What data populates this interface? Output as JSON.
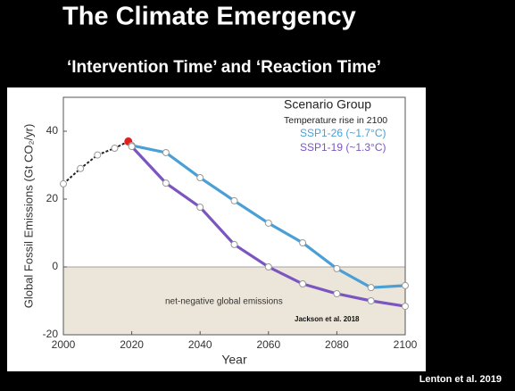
{
  "title": "The Climate Emergency",
  "subtitle": "‘Intervention Time’ and ‘Reaction Time’",
  "source": "Lenton et al. 2019",
  "chart_data": {
    "type": "line",
    "x_label": "Year",
    "y_label": "Global Fossil Emissions (Gt CO₂/yr)",
    "xlim": [
      2000,
      2100
    ],
    "xticks": [
      2000,
      2020,
      2040,
      2060,
      2080,
      2100
    ],
    "ylim": [
      -20,
      50
    ],
    "yticks": [
      -20,
      0,
      20,
      40
    ],
    "negative_shade_color": "#ece6da",
    "legend": "upper right",
    "legend_title": "Scenario Group",
    "legend_subtitle": "Temperature rise in 2100",
    "annotations": [
      "net-negative global emissions",
      "Jackson et al. 2018"
    ],
    "series": [
      {
        "color": "#222222",
        "last_point_color": "#e02020",
        "x": [
          2000,
          2005,
          2010,
          2015,
          2019
        ],
        "values": [
          24.5,
          29,
          33,
          35,
          37
        ]
      },
      {
        "name": "SSP1-26 (~1.7°C)",
        "color": "#4aa0d5",
        "x": [
          2020,
          2030,
          2040,
          2050,
          2060,
          2070,
          2080,
          2090,
          2100
        ],
        "values": [
          35.8,
          33.7,
          26.3,
          19.5,
          12.9,
          7.1,
          -0.5,
          -6.1,
          -5.5
        ]
      },
      {
        "name": "SSP1-19 (~1.3°C)",
        "color": "#7b55c0",
        "x": [
          2020,
          2030,
          2040,
          2050,
          2060,
          2070,
          2080,
          2090,
          2100
        ],
        "values": [
          35.5,
          24.7,
          17.6,
          6.6,
          0,
          -5,
          -7.9,
          -10,
          -11.6
        ]
      }
    ]
  }
}
